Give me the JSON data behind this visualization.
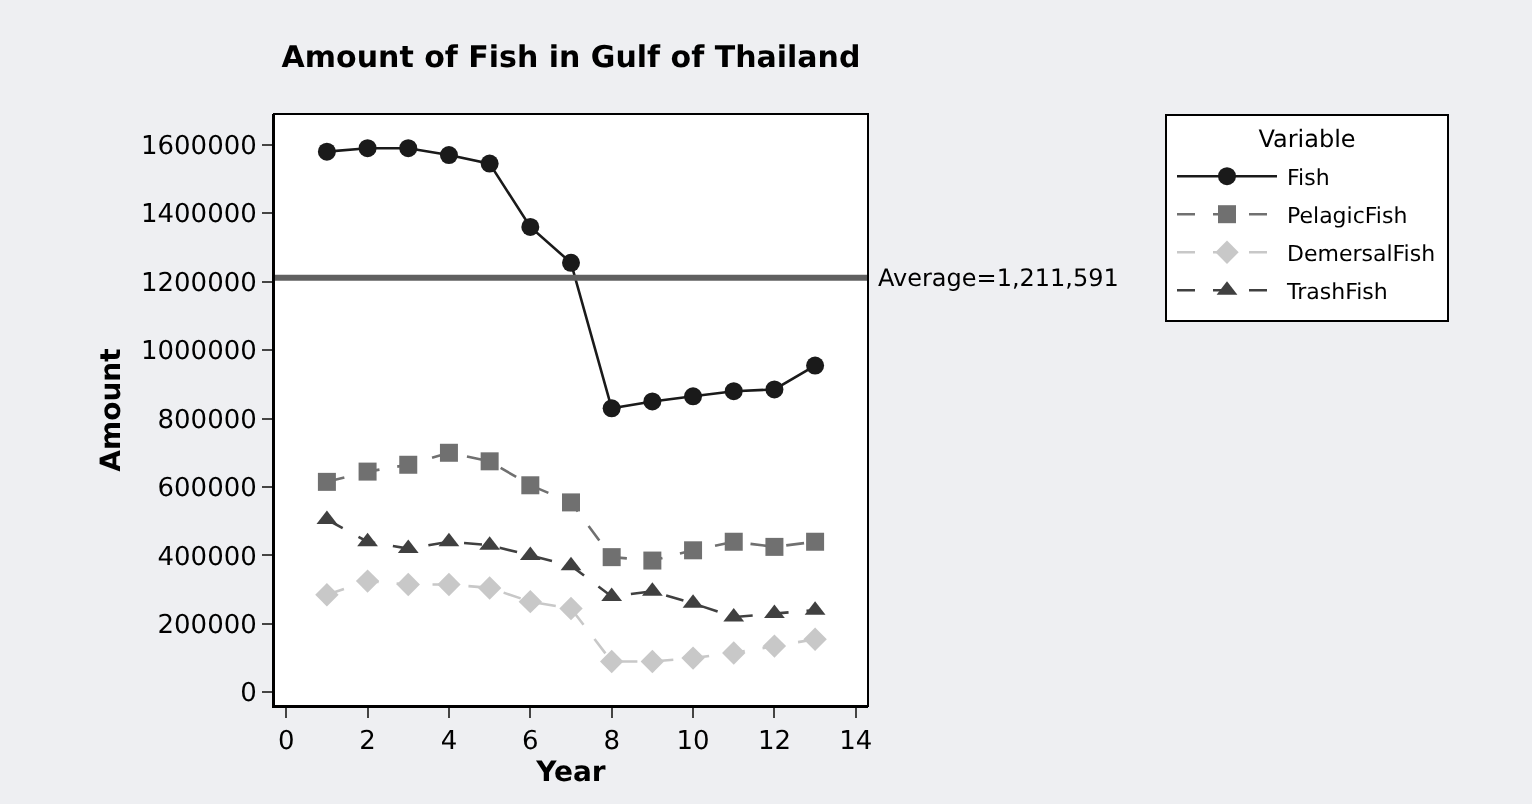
{
  "chart_data": {
    "type": "line",
    "title": "Amount of Fish in Gulf of Thailand",
    "xlabel": "Year",
    "ylabel": "Amount",
    "legend_title": "Variable",
    "x": [
      1,
      2,
      3,
      4,
      5,
      6,
      7,
      8,
      9,
      10,
      11,
      12,
      13
    ],
    "series": [
      {
        "name": "Fish",
        "color": "#1a1a1a",
        "marker": "circle",
        "line_style": "solid",
        "values": [
          1580000,
          1590000,
          1590000,
          1570000,
          1545000,
          1360000,
          1255000,
          830000,
          850000,
          865000,
          880000,
          885000,
          955000
        ]
      },
      {
        "name": "PelagicFish",
        "color": "#707070",
        "marker": "square",
        "line_style": "dashed",
        "values": [
          615000,
          645000,
          665000,
          700000,
          675000,
          605000,
          555000,
          395000,
          385000,
          415000,
          440000,
          425000,
          440000
        ]
      },
      {
        "name": "DemersalFish",
        "color": "#c8c8c8",
        "marker": "diamond",
        "line_style": "dashed",
        "values": [
          285000,
          325000,
          315000,
          315000,
          305000,
          265000,
          245000,
          90000,
          90000,
          100000,
          115000,
          135000,
          155000
        ]
      },
      {
        "name": "TrashFish",
        "color": "#404040",
        "marker": "triangle",
        "line_style": "dashed",
        "values": [
          505000,
          440000,
          420000,
          440000,
          430000,
          400000,
          370000,
          280000,
          295000,
          260000,
          220000,
          230000,
          240000
        ]
      }
    ],
    "ref_lines": [
      {
        "axis": "y",
        "value": 1211591,
        "label": "Average=1,211,591",
        "color": "#606060"
      }
    ],
    "xlim": [
      -0.3,
      14.3
    ],
    "xticks": [
      0,
      2,
      4,
      6,
      8,
      10,
      12,
      14
    ],
    "ylim": [
      -40000,
      1690000
    ],
    "yticks": [
      0,
      200000,
      400000,
      600000,
      800000,
      1000000,
      1200000,
      1400000,
      1600000
    ],
    "legend": "top right"
  }
}
